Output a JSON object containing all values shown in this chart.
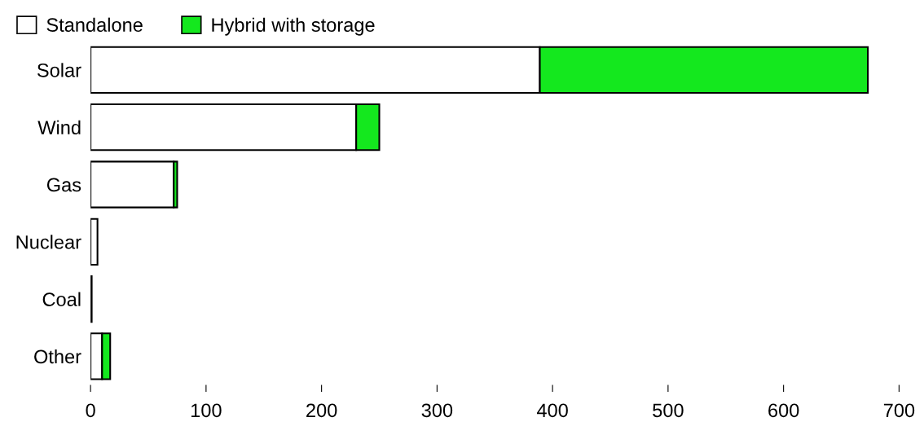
{
  "chart_data": {
    "type": "bar",
    "orientation": "horizontal",
    "stacked": true,
    "categories": [
      "Solar",
      "Wind",
      "Gas",
      "Nuclear",
      "Coal",
      "Other"
    ],
    "series": [
      {
        "name": "Standalone",
        "color": "#ffffff",
        "values": [
          389,
          230,
          72,
          6,
          1,
          10
        ]
      },
      {
        "name": "Hybrid with storage",
        "color": "#14e81e",
        "values": [
          284,
          20,
          3,
          0,
          0,
          7
        ]
      }
    ],
    "xlim": [
      0,
      700
    ],
    "xticks": [
      0,
      100,
      200,
      300,
      400,
      500,
      600,
      700
    ],
    "grid": false,
    "legend": "top left"
  }
}
